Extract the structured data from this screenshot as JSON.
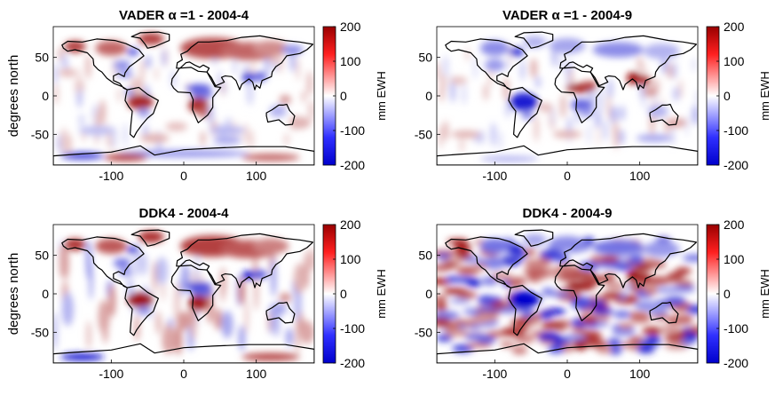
{
  "figure": {
    "ylabel": "degrees north",
    "colorbar_label": "mm EWH",
    "colorbar_ticks": [
      "200",
      "100",
      "0",
      "-100",
      "-200"
    ],
    "colormap": {
      "low": "#0000cc",
      "mid": "#ffffff",
      "high": "#990000"
    }
  },
  "chart_data": [
    {
      "type": "heatmap",
      "title": "VADER α =1 - 2004-4",
      "xlabel": "",
      "ylabel": "degrees north",
      "xlim": [
        -180,
        180
      ],
      "ylim": [
        -90,
        90
      ],
      "clim": [
        -200,
        200
      ],
      "x_ticks": [
        "-100",
        "0",
        "100"
      ],
      "y_ticks": [
        "50",
        "0",
        "-50"
      ],
      "colorbar_label": "mm EWH"
    },
    {
      "type": "heatmap",
      "title": "VADER α =1 - 2004-9",
      "xlabel": "",
      "ylabel": "",
      "xlim": [
        -180,
        180
      ],
      "ylim": [
        -90,
        90
      ],
      "clim": [
        -200,
        200
      ],
      "x_ticks": [
        "-100",
        "0",
        "100"
      ],
      "y_ticks": [
        "50",
        "0",
        "-50"
      ],
      "colorbar_label": "mm EWH"
    },
    {
      "type": "heatmap",
      "title": "DDK4 - 2004-4",
      "xlabel": "",
      "ylabel": "degrees north",
      "xlim": [
        -180,
        180
      ],
      "ylim": [
        -90,
        90
      ],
      "clim": [
        -200,
        200
      ],
      "x_ticks": [
        "-100",
        "0",
        "100"
      ],
      "y_ticks": [
        "50",
        "0",
        "-50"
      ],
      "colorbar_label": "mm EWH"
    },
    {
      "type": "heatmap",
      "title": "DDK4 - 2004-9",
      "xlabel": "",
      "ylabel": "",
      "xlim": [
        -180,
        180
      ],
      "ylim": [
        -90,
        90
      ],
      "clim": [
        -200,
        200
      ],
      "x_ticks": [
        "-100",
        "0",
        "100"
      ],
      "y_ticks": [
        "50",
        "0",
        "-50"
      ],
      "colorbar_label": "mm EWH"
    }
  ]
}
